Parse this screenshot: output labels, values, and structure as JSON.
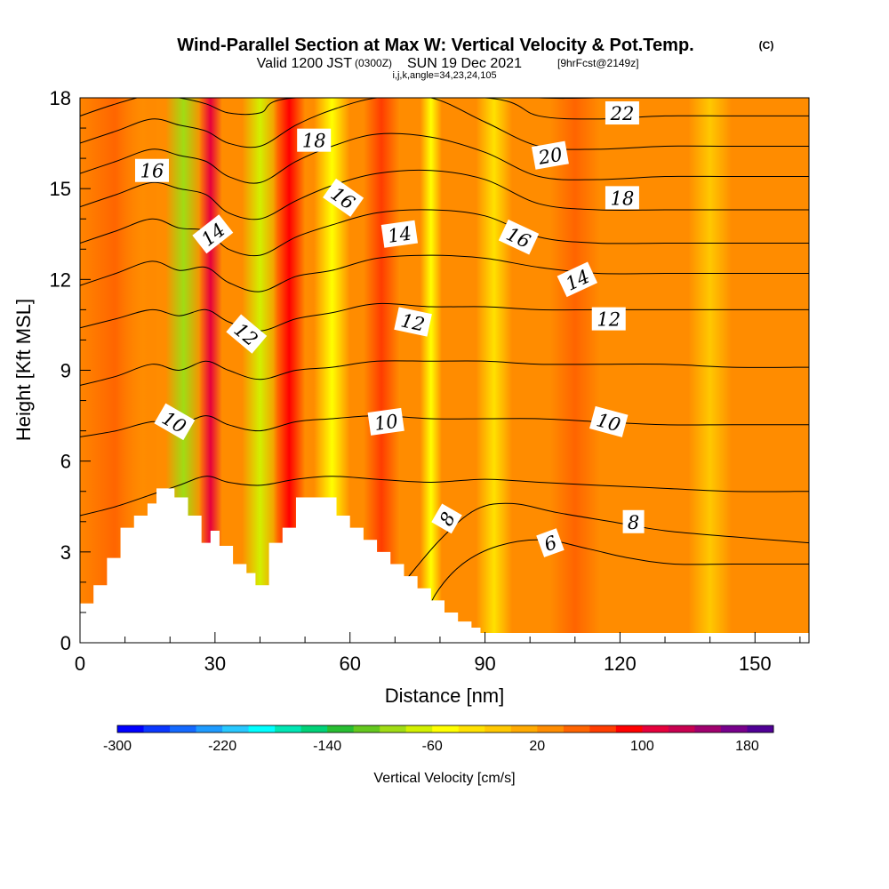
{
  "header": {
    "title": "Wind-Parallel Section at Max W: Vertical Velocity & Pot.Temp.",
    "title_mark": "(C)",
    "valid_label": "Valid 1200 JST",
    "valid_utc": "(0300Z)",
    "valid_date": "SUN 19 Dec 2021",
    "forecast": "[9hrFcst@2149z]",
    "indices": "i,j,k,angle=34,23,24,105"
  },
  "chart_data": {
    "type": "heatmap",
    "xlabel": "Distance [nm]",
    "ylabel": "Height [Kft MSL]",
    "xlim": [
      0,
      162
    ],
    "ylim": [
      0,
      18
    ],
    "x_ticks": [
      "0",
      "30",
      "60",
      "90",
      "120",
      "150"
    ],
    "x_tick_values": [
      0,
      30,
      60,
      90,
      120,
      150
    ],
    "y_ticks": [
      "0",
      "3",
      "6",
      "9",
      "12",
      "15",
      "18"
    ],
    "y_tick_values": [
      0,
      3,
      6,
      9,
      12,
      15,
      18
    ],
    "colorbar": {
      "label": "Vertical Velocity [cm/s]",
      "min": -300,
      "max": 200,
      "step": 20,
      "tick_labels": [
        "-300",
        "-220",
        "-140",
        "-60",
        "20",
        "100",
        "180"
      ],
      "tick_values": [
        -300,
        -220,
        -140,
        -60,
        20,
        100,
        180
      ],
      "colors": [
        "#0000ff",
        "#0a37ff",
        "#1469ff",
        "#1e9bff",
        "#28c8ff",
        "#00ffff",
        "#00e6b4",
        "#00d278",
        "#28be32",
        "#64c81e",
        "#a0dc14",
        "#d2f000",
        "#ffff00",
        "#ffe100",
        "#ffc800",
        "#ffaa00",
        "#ff8c00",
        "#ff6400",
        "#ff3c00",
        "#ff0000",
        "#e6003c",
        "#c80050",
        "#a0006e",
        "#78008c",
        "#500096"
      ]
    },
    "velocity_bands": [
      {
        "x": 8,
        "w": 6,
        "value": 55
      },
      {
        "x": 14,
        "w": 4,
        "value": 30
      },
      {
        "x": 23,
        "w": 2.5,
        "value": -90
      },
      {
        "x": 29,
        "w": 1.6,
        "value": 110
      },
      {
        "x": 40,
        "w": 2.5,
        "value": -70
      },
      {
        "x": 46.5,
        "w": 2.2,
        "value": 85
      },
      {
        "x": 56,
        "w": 2.5,
        "value": -55
      },
      {
        "x": 67,
        "w": 2.5,
        "value": 65
      },
      {
        "x": 78,
        "w": 1.5,
        "value": -45
      },
      {
        "x": 92,
        "w": 2.5,
        "value": -25
      },
      {
        "x": 110,
        "w": 3.5,
        "value": 45
      },
      {
        "x": 140,
        "w": 3,
        "value": -15
      }
    ],
    "terrain": {
      "x": [
        0,
        3,
        3,
        6,
        6,
        9,
        9,
        12,
        12,
        15,
        15,
        17,
        17,
        21,
        21,
        24,
        24,
        27,
        27,
        29,
        29,
        31,
        31,
        34,
        34,
        37,
        37,
        39,
        39,
        42,
        42,
        45,
        45,
        48,
        48,
        51,
        51,
        57,
        57,
        60,
        60,
        63,
        63,
        66,
        66,
        69,
        69,
        72,
        72,
        75,
        75,
        78,
        78,
        81,
        81,
        84,
        84,
        87,
        87,
        89,
        89,
        90
      ],
      "y": [
        1.3,
        1.3,
        1.9,
        1.9,
        2.8,
        2.8,
        3.8,
        3.8,
        4.2,
        4.2,
        4.6,
        4.6,
        5.1,
        5.1,
        4.8,
        4.8,
        4.2,
        4.2,
        3.3,
        3.3,
        3.7,
        3.7,
        3.2,
        3.2,
        2.6,
        2.6,
        2.3,
        2.3,
        1.9,
        1.9,
        3.3,
        3.3,
        3.8,
        3.8,
        4.8,
        4.8,
        4.8,
        4.8,
        4.2,
        4.2,
        3.8,
        3.8,
        3.4,
        3.4,
        3.0,
        3.0,
        2.6,
        2.6,
        2.2,
        2.2,
        1.8,
        1.8,
        1.4,
        1.4,
        1.0,
        1.0,
        0.7,
        0.7,
        0.5,
        0.5,
        0.3,
        0.3
      ]
    },
    "isentropes": [
      {
        "level": 6,
        "points": [
          [
            76,
            0.5
          ],
          [
            79,
            1.6
          ],
          [
            85,
            2.6
          ],
          [
            93,
            3.2
          ],
          [
            103,
            3.4
          ],
          [
            113,
            3.1
          ],
          [
            122,
            2.8
          ],
          [
            132,
            2.6
          ],
          [
            145,
            2.6
          ],
          [
            162,
            2.6
          ]
        ]
      },
      {
        "level": 8,
        "points": [
          [
            72,
            2.0
          ],
          [
            80,
            3.4
          ],
          [
            88,
            4.4
          ],
          [
            96,
            4.6
          ],
          [
            106,
            4.3
          ],
          [
            118,
            4.0
          ],
          [
            130,
            3.7
          ],
          [
            145,
            3.5
          ],
          [
            162,
            3.3
          ]
        ]
      },
      {
        "level": 9,
        "points": [
          [
            0,
            4.2
          ],
          [
            8,
            4.5
          ],
          [
            16,
            4.9
          ],
          [
            22,
            5.2
          ],
          [
            28,
            5.5
          ],
          [
            33,
            5.3
          ],
          [
            40,
            5.2
          ],
          [
            48,
            5.4
          ],
          [
            56,
            5.5
          ],
          [
            66,
            5.4
          ],
          [
            78,
            5.3
          ],
          [
            90,
            5.4
          ],
          [
            102,
            5.3
          ],
          [
            115,
            5.2
          ],
          [
            130,
            5.1
          ],
          [
            145,
            5.0
          ],
          [
            162,
            5.0
          ]
        ]
      },
      {
        "level": 10,
        "points": [
          [
            0,
            6.8
          ],
          [
            8,
            7.0
          ],
          [
            16,
            7.3
          ],
          [
            22,
            7.2
          ],
          [
            28,
            7.5
          ],
          [
            33,
            7.2
          ],
          [
            40,
            7.0
          ],
          [
            48,
            7.3
          ],
          [
            56,
            7.4
          ],
          [
            66,
            7.5
          ],
          [
            78,
            7.4
          ],
          [
            90,
            7.4
          ],
          [
            102,
            7.4
          ],
          [
            115,
            7.3
          ],
          [
            130,
            7.2
          ],
          [
            145,
            7.2
          ],
          [
            162,
            7.2
          ]
        ]
      },
      {
        "level": 11,
        "points": [
          [
            0,
            8.5
          ],
          [
            8,
            8.8
          ],
          [
            16,
            9.2
          ],
          [
            22,
            9.0
          ],
          [
            28,
            9.3
          ],
          [
            33,
            9.0
          ],
          [
            40,
            8.7
          ],
          [
            48,
            9.0
          ],
          [
            56,
            9.1
          ],
          [
            66,
            9.3
          ],
          [
            78,
            9.3
          ],
          [
            90,
            9.3
          ],
          [
            102,
            9.2
          ],
          [
            115,
            9.2
          ],
          [
            130,
            9.2
          ],
          [
            145,
            9.1
          ],
          [
            162,
            9.1
          ]
        ]
      },
      {
        "level": 12,
        "points": [
          [
            0,
            10.4
          ],
          [
            8,
            10.7
          ],
          [
            16,
            11.0
          ],
          [
            22,
            10.8
          ],
          [
            28,
            11.0
          ],
          [
            33,
            10.6
          ],
          [
            40,
            10.3
          ],
          [
            48,
            10.7
          ],
          [
            56,
            10.9
          ],
          [
            66,
            11.2
          ],
          [
            78,
            11.1
          ],
          [
            90,
            11.1
          ],
          [
            102,
            11.0
          ],
          [
            115,
            11.0
          ],
          [
            130,
            11.0
          ],
          [
            145,
            11.0
          ],
          [
            162,
            11.0
          ]
        ]
      },
      {
        "level": 13,
        "points": [
          [
            0,
            11.8
          ],
          [
            8,
            12.2
          ],
          [
            16,
            12.6
          ],
          [
            22,
            12.3
          ],
          [
            28,
            12.4
          ],
          [
            33,
            11.9
          ],
          [
            40,
            11.6
          ],
          [
            48,
            12.1
          ],
          [
            56,
            12.3
          ],
          [
            66,
            12.7
          ],
          [
            78,
            12.8
          ],
          [
            90,
            12.7
          ],
          [
            102,
            12.4
          ],
          [
            115,
            12.2
          ],
          [
            130,
            12.2
          ],
          [
            145,
            12.2
          ],
          [
            162,
            12.2
          ]
        ]
      },
      {
        "level": 14,
        "points": [
          [
            0,
            13.2
          ],
          [
            8,
            13.6
          ],
          [
            16,
            14.0
          ],
          [
            22,
            13.7
          ],
          [
            28,
            13.6
          ],
          [
            33,
            13.0
          ],
          [
            40,
            12.8
          ],
          [
            48,
            13.4
          ],
          [
            56,
            13.8
          ],
          [
            66,
            14.2
          ],
          [
            78,
            14.3
          ],
          [
            90,
            14.1
          ],
          [
            102,
            13.4
          ],
          [
            115,
            13.2
          ],
          [
            130,
            13.2
          ],
          [
            145,
            13.2
          ],
          [
            162,
            13.2
          ]
        ]
      },
      {
        "level": 15,
        "points": [
          [
            0,
            14.4
          ],
          [
            8,
            14.8
          ],
          [
            16,
            15.2
          ],
          [
            22,
            15.0
          ],
          [
            28,
            14.8
          ],
          [
            33,
            14.2
          ],
          [
            40,
            14.0
          ],
          [
            48,
            14.6
          ],
          [
            56,
            15.1
          ],
          [
            66,
            15.5
          ],
          [
            78,
            15.6
          ],
          [
            90,
            15.3
          ],
          [
            102,
            14.5
          ],
          [
            115,
            14.3
          ],
          [
            130,
            14.3
          ],
          [
            145,
            14.3
          ],
          [
            162,
            14.3
          ]
        ]
      },
      {
        "level": 16,
        "points": [
          [
            0,
            15.5
          ],
          [
            8,
            15.9
          ],
          [
            16,
            16.3
          ],
          [
            22,
            16.1
          ],
          [
            28,
            15.9
          ],
          [
            33,
            15.4
          ],
          [
            40,
            15.2
          ],
          [
            48,
            15.9
          ],
          [
            56,
            16.4
          ],
          [
            66,
            16.8
          ],
          [
            78,
            16.7
          ],
          [
            90,
            16.2
          ],
          [
            102,
            15.4
          ],
          [
            115,
            15.3
          ],
          [
            130,
            15.4
          ],
          [
            145,
            15.4
          ],
          [
            162,
            15.4
          ]
        ]
      },
      {
        "level": 17,
        "points": [
          [
            0,
            16.5
          ],
          [
            8,
            16.9
          ],
          [
            16,
            17.3
          ],
          [
            22,
            17.1
          ],
          [
            28,
            16.9
          ],
          [
            33,
            16.5
          ],
          [
            40,
            16.4
          ],
          [
            48,
            17.1
          ],
          [
            56,
            17.6
          ],
          [
            66,
            18.0
          ],
          [
            78,
            18.0
          ],
          [
            90,
            17.2
          ],
          [
            102,
            16.4
          ],
          [
            115,
            16.3
          ],
          [
            130,
            16.4
          ],
          [
            145,
            16.4
          ],
          [
            162,
            16.4
          ]
        ]
      },
      {
        "level": 18,
        "points": [
          [
            0,
            17.4
          ],
          [
            8,
            17.8
          ],
          [
            16,
            18.1
          ],
          [
            22,
            18.0
          ],
          [
            28,
            17.8
          ],
          [
            33,
            17.5
          ],
          [
            40,
            17.5
          ],
          [
            48,
            18.0
          ],
          [
            90,
            18.0
          ],
          [
            102,
            17.4
          ],
          [
            115,
            17.3
          ],
          [
            130,
            17.4
          ],
          [
            145,
            17.4
          ],
          [
            162,
            17.4
          ]
        ]
      },
      {
        "level": 20,
        "points": [
          [
            90,
            18.2
          ],
          [
            102,
            18.0
          ],
          [
            115,
            18.0
          ],
          [
            130,
            18.1
          ],
          [
            162,
            18.1
          ]
        ]
      }
    ],
    "contour_labels": [
      {
        "text": "16",
        "x": 16,
        "y": 15.6,
        "angle": 0
      },
      {
        "text": "18",
        "x": 52,
        "y": 16.6,
        "angle": 0
      },
      {
        "text": "14",
        "x": 29.5,
        "y": 13.5,
        "angle": -38
      },
      {
        "text": "16",
        "x": 58.5,
        "y": 14.7,
        "angle": 35
      },
      {
        "text": "14",
        "x": 71,
        "y": 13.5,
        "angle": -8
      },
      {
        "text": "12",
        "x": 37,
        "y": 10.2,
        "angle": 40
      },
      {
        "text": "12",
        "x": 74,
        "y": 10.6,
        "angle": 12
      },
      {
        "text": "10",
        "x": 21,
        "y": 7.3,
        "angle": 30
      },
      {
        "text": "10",
        "x": 68,
        "y": 7.3,
        "angle": -8
      },
      {
        "text": "8",
        "x": 81.5,
        "y": 4.1,
        "angle": -60
      },
      {
        "text": "6",
        "x": 104.5,
        "y": 3.3,
        "angle": -20
      },
      {
        "text": "22",
        "x": 120.5,
        "y": 17.5,
        "angle": 0
      },
      {
        "text": "20",
        "x": 104.5,
        "y": 16.1,
        "angle": -10
      },
      {
        "text": "18",
        "x": 120.5,
        "y": 14.7,
        "angle": 0
      },
      {
        "text": "16",
        "x": 97.5,
        "y": 13.4,
        "angle": 25
      },
      {
        "text": "14",
        "x": 110.5,
        "y": 12.0,
        "angle": -25
      },
      {
        "text": "12",
        "x": 117.5,
        "y": 10.7,
        "angle": 0
      },
      {
        "text": "10",
        "x": 117.5,
        "y": 7.3,
        "angle": 15
      },
      {
        "text": "8",
        "x": 123,
        "y": 4.0,
        "angle": 0
      }
    ]
  }
}
